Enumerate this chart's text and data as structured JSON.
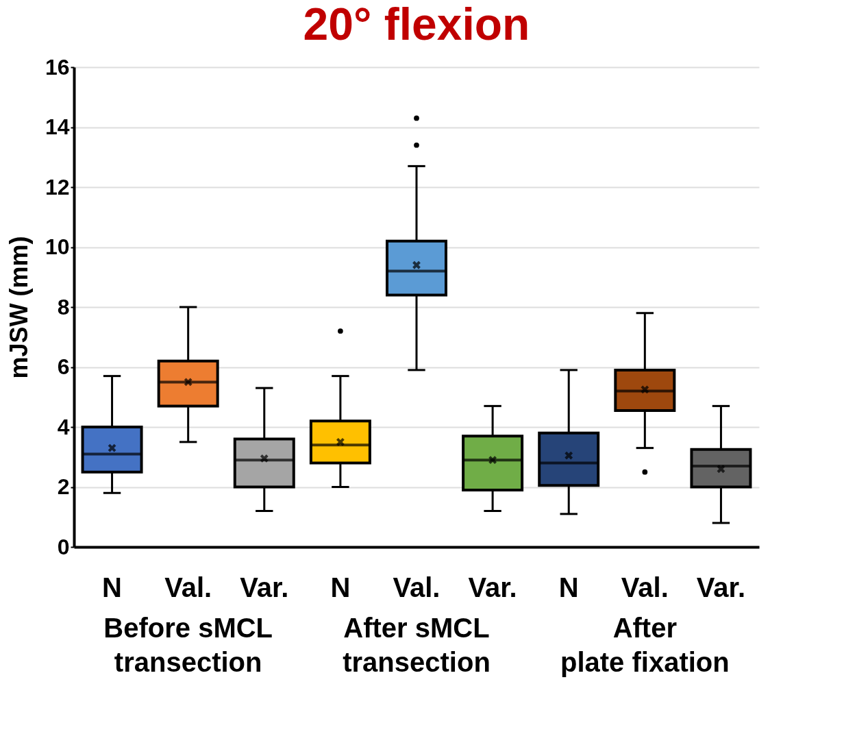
{
  "chart_data": {
    "type": "box",
    "title": "20° flexion",
    "ylabel": "mJSW (mm)",
    "categories": [
      "N",
      "Val.",
      "Var.",
      "N",
      "Val.",
      "Var.",
      "N",
      "Val.",
      "Var."
    ],
    "colors": [
      "#4472c4",
      "#ed7d31",
      "#a5a5a5",
      "#ffc000",
      "#5b9bd5",
      "#70ad47",
      "#264478",
      "#9e480e",
      "#636363"
    ],
    "boxes": [
      {
        "low": 1.8,
        "q1": 2.5,
        "median": 3.1,
        "q3": 4.0,
        "high": 5.7,
        "mean": 3.3
      },
      {
        "low": 3.5,
        "q1": 4.7,
        "median": 5.5,
        "q3": 6.2,
        "high": 8.0,
        "mean": 5.5
      },
      {
        "low": 1.2,
        "q1": 2.0,
        "median": 2.9,
        "q3": 3.6,
        "high": 5.3,
        "mean": 2.95
      },
      {
        "low": 2.0,
        "q1": 2.8,
        "median": 3.4,
        "q3": 4.2,
        "high": 5.7,
        "mean": 3.5,
        "outliers": [
          7.2
        ]
      },
      {
        "low": 5.9,
        "q1": 8.4,
        "median": 9.2,
        "q3": 10.2,
        "high": 12.7,
        "mean": 9.4,
        "outliers": [
          13.4,
          14.3
        ]
      },
      {
        "low": 1.2,
        "q1": 1.9,
        "median": 2.9,
        "q3": 3.7,
        "high": 4.7,
        "mean": 2.9
      },
      {
        "low": 1.1,
        "q1": 2.05,
        "median": 2.8,
        "q3": 3.8,
        "high": 5.9,
        "mean": 3.05
      },
      {
        "low": 3.3,
        "q1": 4.55,
        "median": 5.2,
        "q3": 5.9,
        "high": 7.8,
        "mean": 5.25,
        "outliers": [
          2.5
        ]
      },
      {
        "low": 0.8,
        "q1": 2.0,
        "median": 2.7,
        "q3": 3.25,
        "high": 4.7,
        "mean": 2.6
      }
    ],
    "annotations": [
      "Before sMCL\ntransection",
      "After sMCL\ntransection",
      "After\nplate fixation"
    ],
    "ylim": [
      0,
      16
    ],
    "yticks": [
      0,
      2,
      4,
      6,
      8,
      10,
      12,
      14,
      16
    ],
    "grid": "y"
  }
}
